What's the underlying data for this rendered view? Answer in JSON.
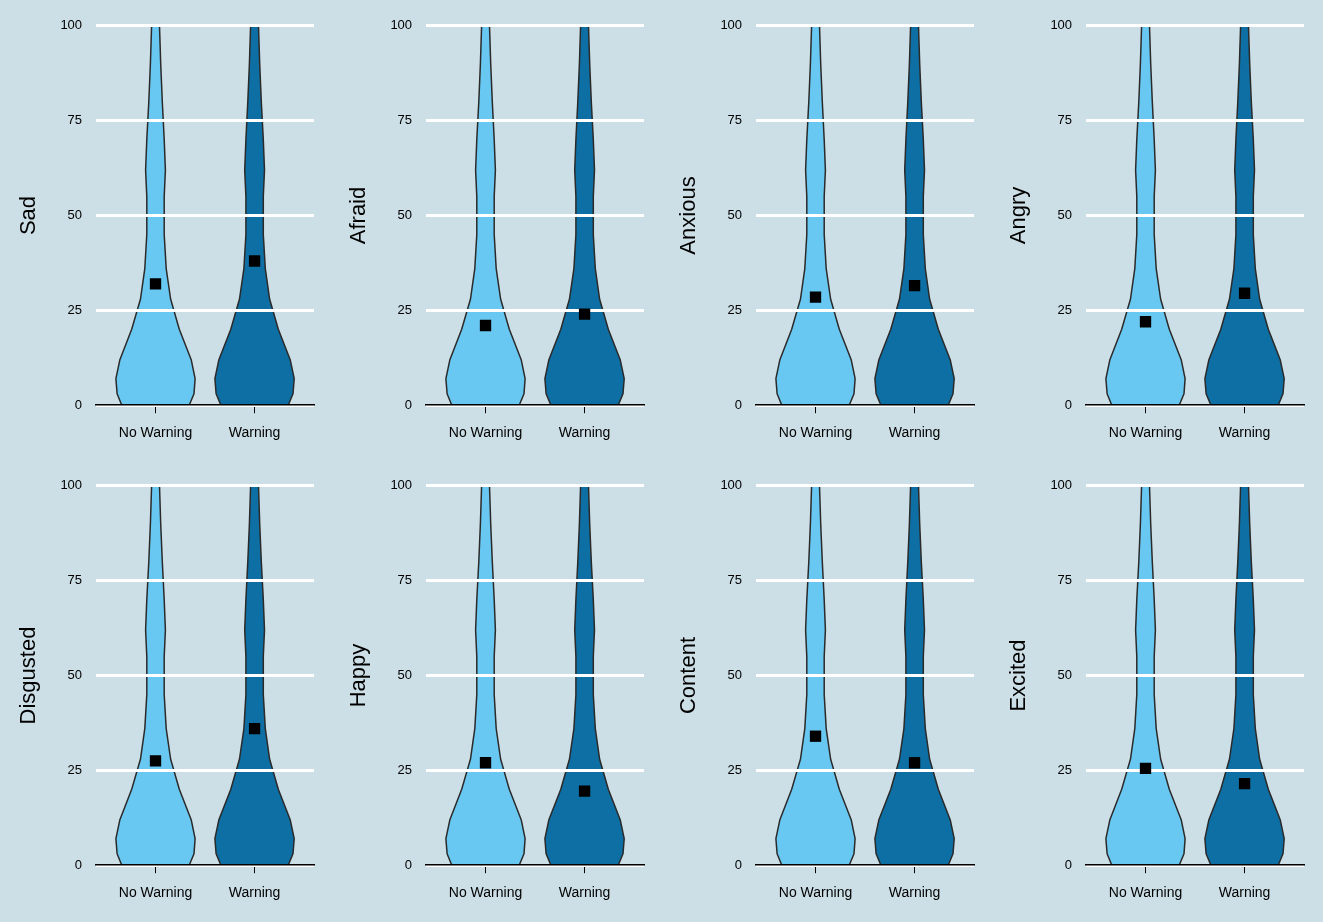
{
  "chart_data": [
    {
      "type": "scatter",
      "ylabel": "Sad",
      "categories": [
        "No Warning",
        "Warning"
      ],
      "ylim": [
        0,
        100
      ],
      "yticks": [
        0,
        25,
        50,
        75,
        100
      ],
      "grid": "y",
      "marker": "square",
      "series": [
        {
          "color": "#000000",
          "values": [
            32,
            38
          ]
        }
      ]
    },
    {
      "type": "scatter",
      "ylabel": "Afraid",
      "categories": [
        "No Warning",
        "Warning"
      ],
      "ylim": [
        0,
        100
      ],
      "yticks": [
        0,
        25,
        50,
        75,
        100
      ],
      "grid": "y",
      "marker": "square",
      "series": [
        {
          "color": "#000000",
          "values": [
            21,
            24
          ]
        }
      ]
    },
    {
      "type": "scatter",
      "ylabel": "Anxious",
      "categories": [
        "No Warning",
        "Warning"
      ],
      "ylim": [
        0,
        100
      ],
      "yticks": [
        0,
        25,
        50,
        75,
        100
      ],
      "grid": "y",
      "marker": "square",
      "series": [
        {
          "color": "#000000",
          "values": [
            28.5,
            31.5
          ]
        }
      ]
    },
    {
      "type": "scatter",
      "ylabel": "Angry",
      "categories": [
        "No Warning",
        "Warning"
      ],
      "ylim": [
        0,
        100
      ],
      "yticks": [
        0,
        25,
        50,
        75,
        100
      ],
      "grid": "y",
      "marker": "square",
      "series": [
        {
          "color": "#000000",
          "values": [
            22,
            29.5
          ]
        }
      ]
    },
    {
      "type": "scatter",
      "ylabel": "Disgusted",
      "categories": [
        "No Warning",
        "Warning"
      ],
      "ylim": [
        0,
        100
      ],
      "yticks": [
        0,
        25,
        50,
        75,
        100
      ],
      "grid": "y",
      "marker": "square",
      "series": [
        {
          "color": "#000000",
          "values": [
            27.5,
            36
          ]
        }
      ]
    },
    {
      "type": "scatter",
      "ylabel": "Happy",
      "categories": [
        "No Warning",
        "Warning"
      ],
      "ylim": [
        0,
        100
      ],
      "yticks": [
        0,
        25,
        50,
        75,
        100
      ],
      "grid": "y",
      "marker": "square",
      "series": [
        {
          "color": "#000000",
          "values": [
            27,
            19.5
          ]
        }
      ]
    },
    {
      "type": "scatter",
      "ylabel": "Content",
      "categories": [
        "No Warning",
        "Warning"
      ],
      "ylim": [
        0,
        100
      ],
      "yticks": [
        0,
        25,
        50,
        75,
        100
      ],
      "grid": "y",
      "marker": "square",
      "series": [
        {
          "color": "#000000",
          "values": [
            34,
            27
          ]
        }
      ]
    },
    {
      "type": "scatter",
      "ylabel": "Excited",
      "categories": [
        "No Warning",
        "Warning"
      ],
      "ylim": [
        0,
        100
      ],
      "yticks": [
        0,
        25,
        50,
        75,
        100
      ],
      "grid": "y",
      "marker": "square",
      "series": [
        {
          "color": "#000000",
          "values": [
            25.5,
            21.5
          ]
        }
      ]
    }
  ]
}
